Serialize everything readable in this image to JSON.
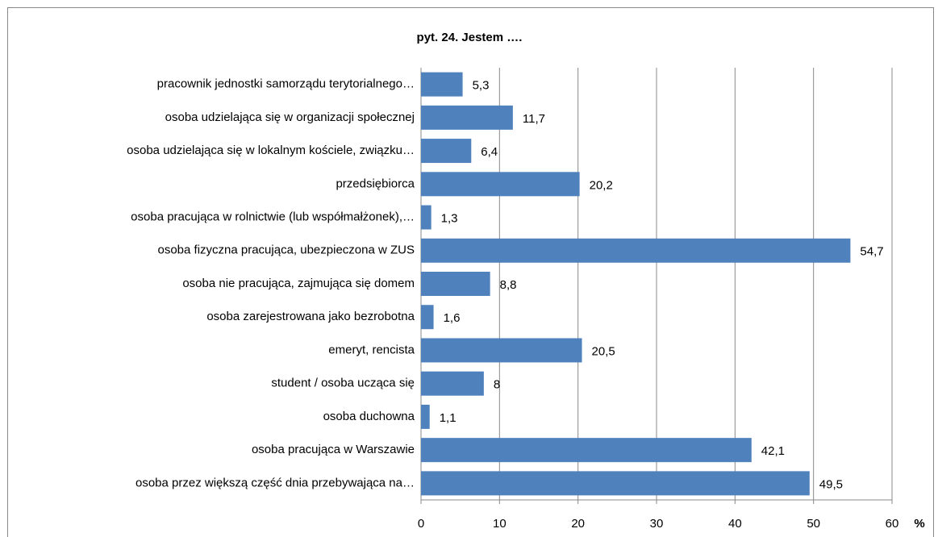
{
  "chart_data": {
    "type": "bar",
    "orientation": "horizontal",
    "title": "pyt. 24. Jestem ….",
    "categories": [
      "pracownik jednostki samorządu terytorialnego…",
      "osoba udzielająca się w organizacji społecznej",
      "osoba udzielająca się w lokalnym kościele, związku…",
      "przedsiębiorca",
      "osoba pracująca w rolnictwie (lub współmałżonek),…",
      "osoba fizyczna pracująca, ubezpieczona w ZUS",
      "osoba nie pracująca, zajmująca się domem",
      "osoba zarejestrowana jako bezrobotna",
      "emeryt, rencista",
      "student / osoba ucząca się",
      "osoba duchowna",
      "osoba pracująca w Warszawie",
      "osoba przez większą część dnia przebywająca na…"
    ],
    "values": [
      5.3,
      11.7,
      6.4,
      20.2,
      1.3,
      54.7,
      8.8,
      1.6,
      20.5,
      8,
      1.1,
      42.1,
      49.5
    ],
    "value_labels": [
      "5,3",
      "11,7",
      "6,4",
      "20,2",
      "1,3",
      "54,7",
      "8,8",
      "1,6",
      "20,5",
      "8",
      "1,1",
      "42,1",
      "49,5"
    ],
    "color": "#4f81bd",
    "xlabel": "%",
    "xlim": [
      0,
      60
    ],
    "xticks": [
      0,
      10,
      20,
      30,
      40,
      50,
      60
    ],
    "grid": true
  }
}
